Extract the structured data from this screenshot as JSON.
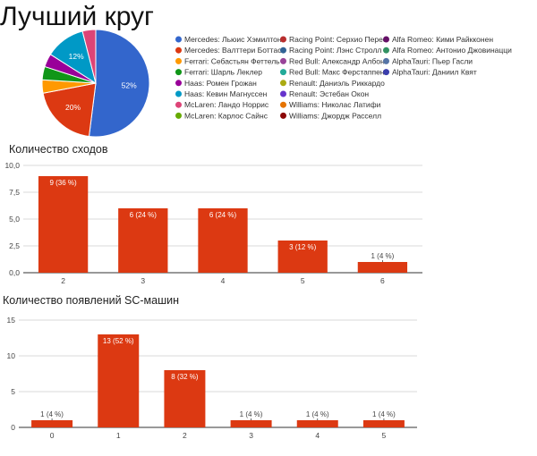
{
  "page": {
    "title": "Лучший круг"
  },
  "colors": {
    "bar": "#dc3912",
    "bar_label_inside": "#ffffff",
    "bar_label_outside": "#444444",
    "grid": "#cccccc",
    "axis": "#333333"
  },
  "chart_data": [
    {
      "type": "pie",
      "title": "Лучший круг",
      "slices": [
        {
          "label": "Mercedes: Льюис Хэмилтон",
          "value": 52,
          "color": "#3366cc",
          "shown_label": "52%"
        },
        {
          "label": "Mercedes: Валттери Боттас",
          "value": 20,
          "color": "#dc3912",
          "shown_label": "20%"
        },
        {
          "label": "Ferrari: Себастьян Феттель",
          "value": 4,
          "color": "#ff9900",
          "shown_label": ""
        },
        {
          "label": "Ferrari: Шарль Леклер",
          "value": 4,
          "color": "#109618",
          "shown_label": ""
        },
        {
          "label": "Haas: Ромен Грожан",
          "value": 4,
          "color": "#990099",
          "shown_label": ""
        },
        {
          "label": "Haas: Кевин Магнуссен",
          "value": 12,
          "color": "#0099c6",
          "shown_label": "12%"
        },
        {
          "label": "McLaren: Ландо Норрис",
          "value": 4,
          "color": "#dd4477",
          "shown_label": ""
        },
        {
          "label": "McLaren: Карлос Сайнс",
          "value": 0,
          "color": "#66aa00",
          "shown_label": ""
        },
        {
          "label": "Racing Point: Серхио Перес",
          "value": 0,
          "color": "#b82e2e",
          "shown_label": ""
        },
        {
          "label": "Racing Point: Лэнс Стролл",
          "value": 0,
          "color": "#316395",
          "shown_label": ""
        },
        {
          "label": "Red Bull: Александр Албон",
          "value": 0,
          "color": "#994499",
          "shown_label": ""
        },
        {
          "label": "Red Bull: Макс Ферстаппен",
          "value": 0,
          "color": "#22aa99",
          "shown_label": ""
        },
        {
          "label": "Renault: Даниэль Риккардо",
          "value": 0,
          "color": "#aaaa11",
          "shown_label": ""
        },
        {
          "label": "Renault: Эстебан Окон",
          "value": 0,
          "color": "#6633cc",
          "shown_label": ""
        },
        {
          "label": "Williams: Николас Латифи",
          "value": 0,
          "color": "#e67300",
          "shown_label": ""
        },
        {
          "label": "Williams: Джордж Расселл",
          "value": 0,
          "color": "#8b0707",
          "shown_label": ""
        },
        {
          "label": "Alfa Romeo: Кими Райкконен",
          "value": 0,
          "color": "#651067",
          "shown_label": ""
        },
        {
          "label": "Alfa Romeo: Антонио Джовинацци",
          "value": 0,
          "color": "#329262",
          "shown_label": ""
        },
        {
          "label": "AlphaTauri: Пьер Гасли",
          "value": 0,
          "color": "#5574a6",
          "shown_label": ""
        },
        {
          "label": "AlphaTauri: Даниил Квят",
          "value": 0,
          "color": "#3b3eac",
          "shown_label": ""
        }
      ]
    },
    {
      "type": "bar",
      "title": "Количество сходов",
      "categories": [
        "2",
        "3",
        "4",
        "5",
        "6"
      ],
      "values": [
        9,
        6,
        6,
        3,
        1
      ],
      "data_labels": [
        "9 (36 %)",
        "6 (24 %)",
        "6 (24 %)",
        "3 (12 %)",
        "1 (4 %)"
      ],
      "ylim": [
        0,
        10
      ],
      "yticks": [
        "0,0",
        "2,5",
        "5,0",
        "7,5",
        "10,0"
      ],
      "grid": true
    },
    {
      "type": "bar",
      "title": "Количество появлений SC-машин",
      "categories": [
        "0",
        "1",
        "2",
        "3",
        "4",
        "5"
      ],
      "values": [
        1,
        13,
        8,
        1,
        1,
        1
      ],
      "data_labels": [
        "1 (4 %)",
        "13 (52 %)",
        "8 (32 %)",
        "1 (4 %)",
        "1 (4 %)",
        "1 (4 %)"
      ],
      "ylim": [
        0,
        15
      ],
      "yticks": [
        "0",
        "5",
        "10",
        "15"
      ],
      "grid": true
    }
  ]
}
